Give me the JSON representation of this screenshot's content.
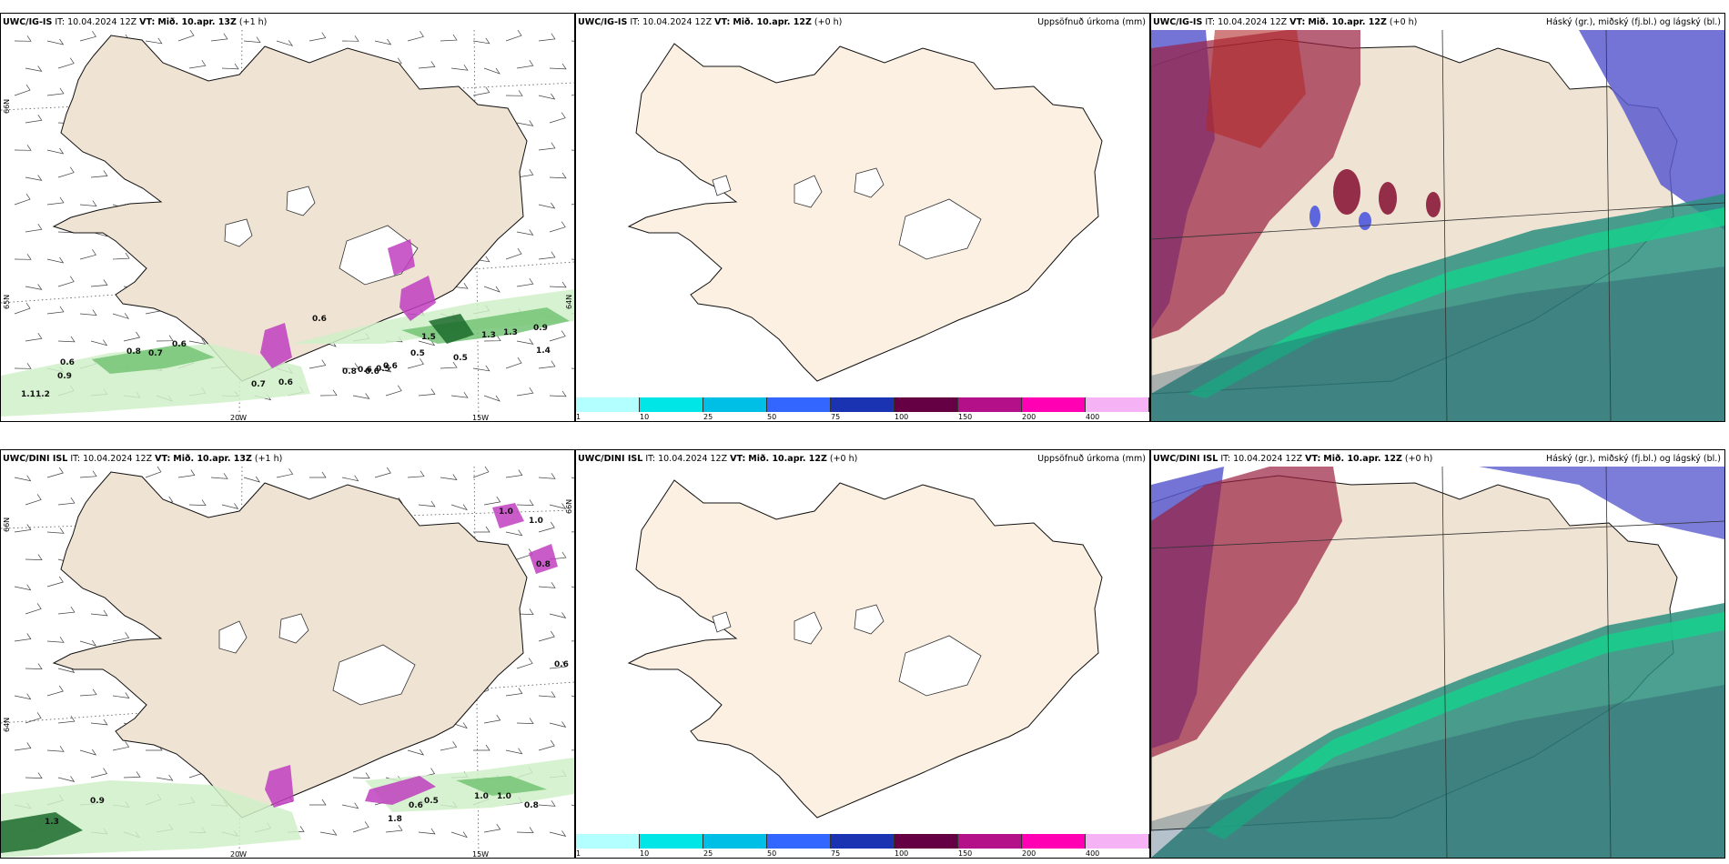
{
  "colors": {
    "land": "#efe3d3",
    "land_light": "#fcf0e2",
    "precip_light": "#d0f0c8",
    "precip_mid": "#74c476",
    "precip_dark": "#1b6b2c",
    "mag": "#c040c0",
    "cloud_high": "#7a5c8a",
    "cloud_mid": "#2aa58a",
    "cloud_low": "#3a5bd0"
  },
  "rows": [
    {
      "model_name": "UWC/IG-IS",
      "left": {
        "model": "UWC/IG-IS",
        "it": "IT: 10.04.2024 12Z",
        "vt_label": "VT:",
        "vt": "Mið. 10.apr. 13Z",
        "lead": "(+1 h)"
      },
      "middle": {
        "model": "UWC/IG-IS",
        "it": "IT: 10.04.2024 12Z",
        "vt_label": "VT:",
        "vt": "Mið. 10.apr. 12Z",
        "lead": "(+0 h)",
        "title": "Uppsöfnuð úrkoma (mm)"
      },
      "right": {
        "model": "UWC/IG-IS",
        "it": "IT: 10.04.2024 12Z",
        "vt_label": "VT:",
        "vt": "Mið. 10.apr. 12Z",
        "lead": "(+0 h)",
        "title": "Háský (gr.), miðský (fj.bl.) og lágský (bl.)"
      },
      "labels": [
        "1.1",
        "1.2",
        "0.9",
        "0.6",
        "0.8",
        "0.7",
        "0.6",
        "0.7",
        "0.6",
        "0.8",
        "0.6",
        "0.6",
        "0.5",
        "0.6",
        "0.5",
        "1.3",
        "1.3",
        "0.9",
        "1.4",
        "0.5",
        "1.5",
        "0.6"
      ]
    },
    {
      "model_name": "UWC/DINI ISL",
      "left": {
        "model": "UWC/DINI ISL",
        "it": "IT: 10.04.2024 12Z",
        "vt_label": "VT:",
        "vt": "Mið. 10.apr. 13Z",
        "lead": "(+1 h)"
      },
      "middle": {
        "model": "UWC/DINI ISL",
        "it": "IT: 10.04.2024 12Z",
        "vt_label": "VT:",
        "vt": "Mið. 10.apr. 12Z",
        "lead": "(+0 h)",
        "title": "Uppsöfnuð úrkoma (mm)"
      },
      "right": {
        "model": "UWC/DINI ISL",
        "it": "IT: 10.04.2024 12Z",
        "vt_label": "VT:",
        "vt": "Mið. 10.apr. 12Z",
        "lead": "(+0 h)",
        "title": "Háský (gr.), miðský (fj.bl.) og lágský (bl.)"
      },
      "labels": [
        "1.3",
        "0.9",
        "1.0",
        "1.0",
        "0.8",
        "1.8",
        "0.5",
        "0.6",
        "1.0",
        "1.0",
        "0.8",
        "0.6"
      ]
    }
  ],
  "axes": {
    "lon_labels": [
      "20W",
      "15W"
    ],
    "lat_labels": [
      "66N",
      "65N",
      "64N"
    ]
  },
  "colorbar": {
    "ticks": [
      "1",
      "10",
      "25",
      "50",
      "75",
      "100",
      "150",
      "200",
      "400"
    ],
    "colors": [
      "#b3ffff",
      "#00e5e5",
      "#00bfe6",
      "#3366ff",
      "#1a33b3",
      "#660044",
      "#b3108a",
      "#ff00b3",
      "#f5b3f5"
    ]
  }
}
